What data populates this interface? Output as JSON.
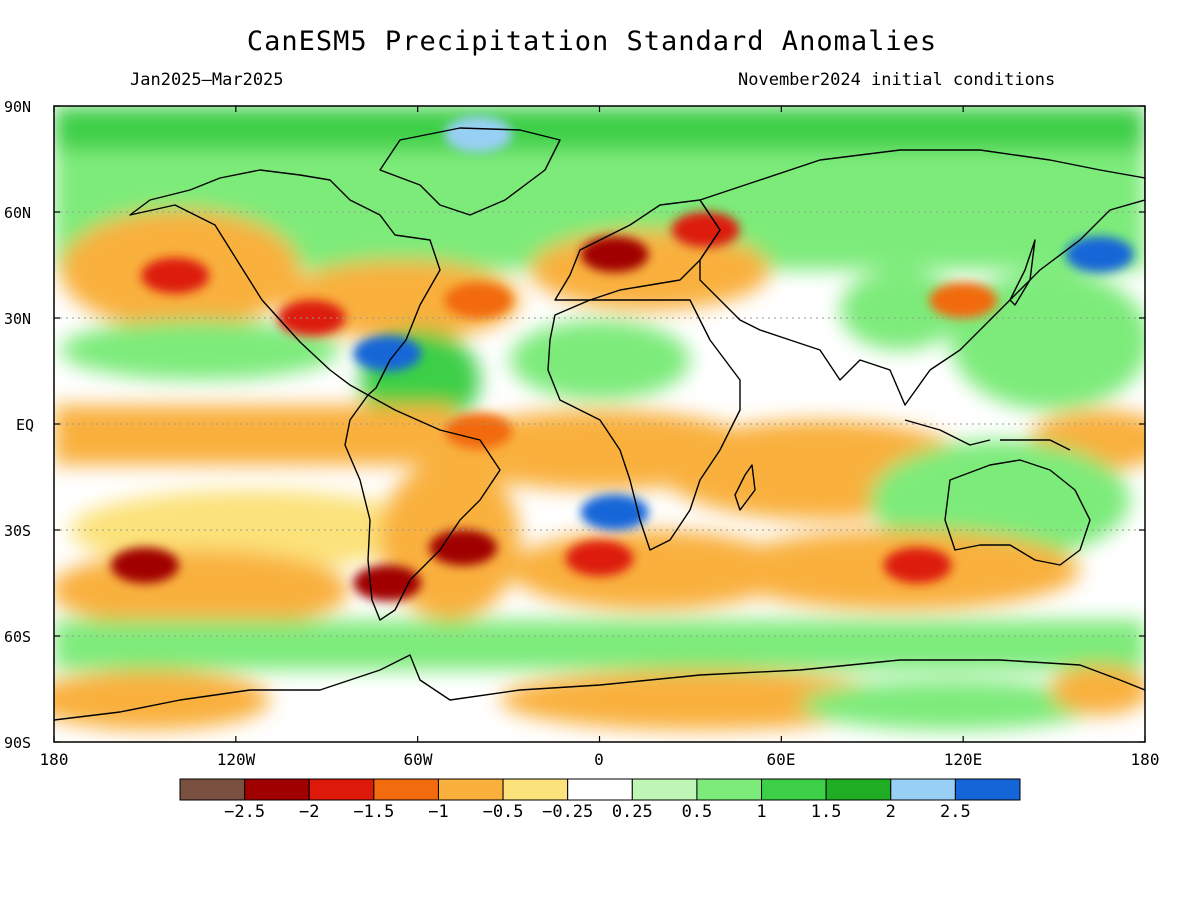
{
  "title": "CanESM5 Precipitation Standard Anomalies",
  "period": "Jan2025—Mar2025",
  "initial_conditions": "November2024 initial conditions",
  "lat_labels": [
    "90N",
    "60N",
    "30N",
    "EQ",
    "30S",
    "60S",
    "90S"
  ],
  "lon_labels": [
    "180",
    "120W",
    "60W",
    "0",
    "60E",
    "120E",
    "180"
  ],
  "colorbar": {
    "colors": [
      "#7a5040",
      "#a00000",
      "#dd1a0a",
      "#f26b0f",
      "#f9b03c",
      "#fce27a",
      "#ffffff",
      "#bff6b5",
      "#7deb7a",
      "#3ccf47",
      "#1fae23",
      "#98d0f5",
      "#1466d8"
    ],
    "labels": [
      "−2.5",
      "−2",
      "−1.5",
      "−1",
      "−0.5",
      "−0.25",
      "0.25",
      "0.5",
      "1",
      "1.5",
      "2",
      "2.5"
    ]
  },
  "anomalies": [
    {
      "lon": -140,
      "lat": 42,
      "level": "-1.5"
    },
    {
      "lon": -95,
      "lat": 30,
      "level": "-1.5"
    },
    {
      "lon": -40,
      "lat": 35,
      "level": "-1"
    },
    {
      "lon": 5,
      "lat": 48,
      "level": "-2"
    },
    {
      "lon": 35,
      "lat": 55,
      "level": "-1.5"
    },
    {
      "lon": -70,
      "lat": 20,
      "level": "2.5"
    },
    {
      "lon": 5,
      "lat": -25,
      "level": "2.5"
    },
    {
      "lon": -150,
      "lat": -40,
      "level": "-2"
    },
    {
      "lon": -70,
      "lat": -45,
      "level": "-2"
    },
    {
      "lon": -45,
      "lat": -35,
      "level": "-2"
    },
    {
      "lon": 0,
      "lat": -38,
      "level": "-1.5"
    },
    {
      "lon": 105,
      "lat": -40,
      "level": "-1.5"
    },
    {
      "lon": -40,
      "lat": -2,
      "level": "-1"
    },
    {
      "lon": 165,
      "lat": 48,
      "level": "2.5"
    },
    {
      "lon": -40,
      "lat": 82,
      "level": "2"
    },
    {
      "lon": 120,
      "lat": 35,
      "level": "-1"
    }
  ]
}
